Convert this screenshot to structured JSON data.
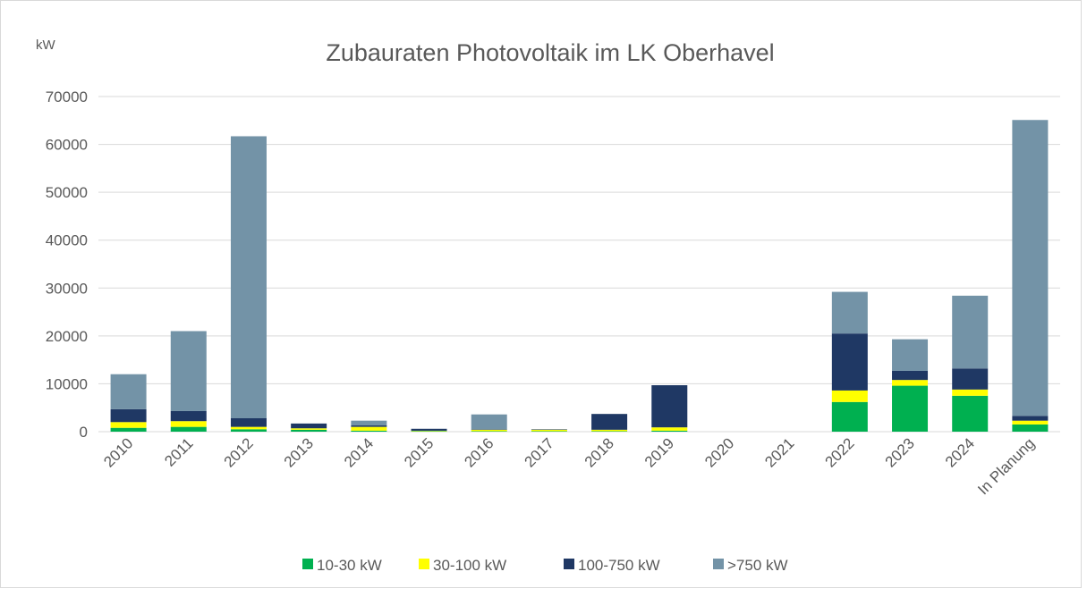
{
  "chart_data": {
    "type": "stacked_bar",
    "title": "Zubauraten Photovoltaik im LK Oberhavel",
    "y_label": "kW",
    "categories": [
      "2010",
      "2011",
      "2012",
      "2013",
      "2014",
      "2015",
      "2016",
      "2017",
      "2018",
      "2019",
      "2020",
      "2021",
      "2022",
      "2023",
      "2024",
      "In Planung"
    ],
    "series": [
      {
        "name": "10-30 kW",
        "color": "#00b050",
        "values": [
          800,
          1000,
          500,
          400,
          200,
          100,
          100,
          100,
          100,
          200,
          0,
          0,
          6200,
          9600,
          7500,
          1500
        ]
      },
      {
        "name": "30-100 kW",
        "color": "#ffff00",
        "values": [
          1200,
          1200,
          500,
          300,
          800,
          100,
          300,
          300,
          300,
          700,
          0,
          0,
          2400,
          1200,
          1300,
          800
        ]
      },
      {
        "name": "100-750 kW",
        "color": "#1f3864",
        "values": [
          2700,
          2100,
          1800,
          1000,
          300,
          400,
          100,
          100,
          3300,
          8800,
          0,
          0,
          11900,
          1900,
          4400,
          1000
        ]
      },
      {
        "name": ">750 kW",
        "color": "#7393a7",
        "values": [
          7300,
          16700,
          58900,
          0,
          1000,
          0,
          3100,
          0,
          0,
          0,
          0,
          0,
          8700,
          6600,
          15200,
          61800
        ]
      }
    ],
    "ylim": [
      0,
      70000
    ],
    "yticks": [
      0,
      10000,
      20000,
      30000,
      40000,
      50000,
      60000,
      70000
    ],
    "grid": true,
    "legend": "bottom"
  }
}
